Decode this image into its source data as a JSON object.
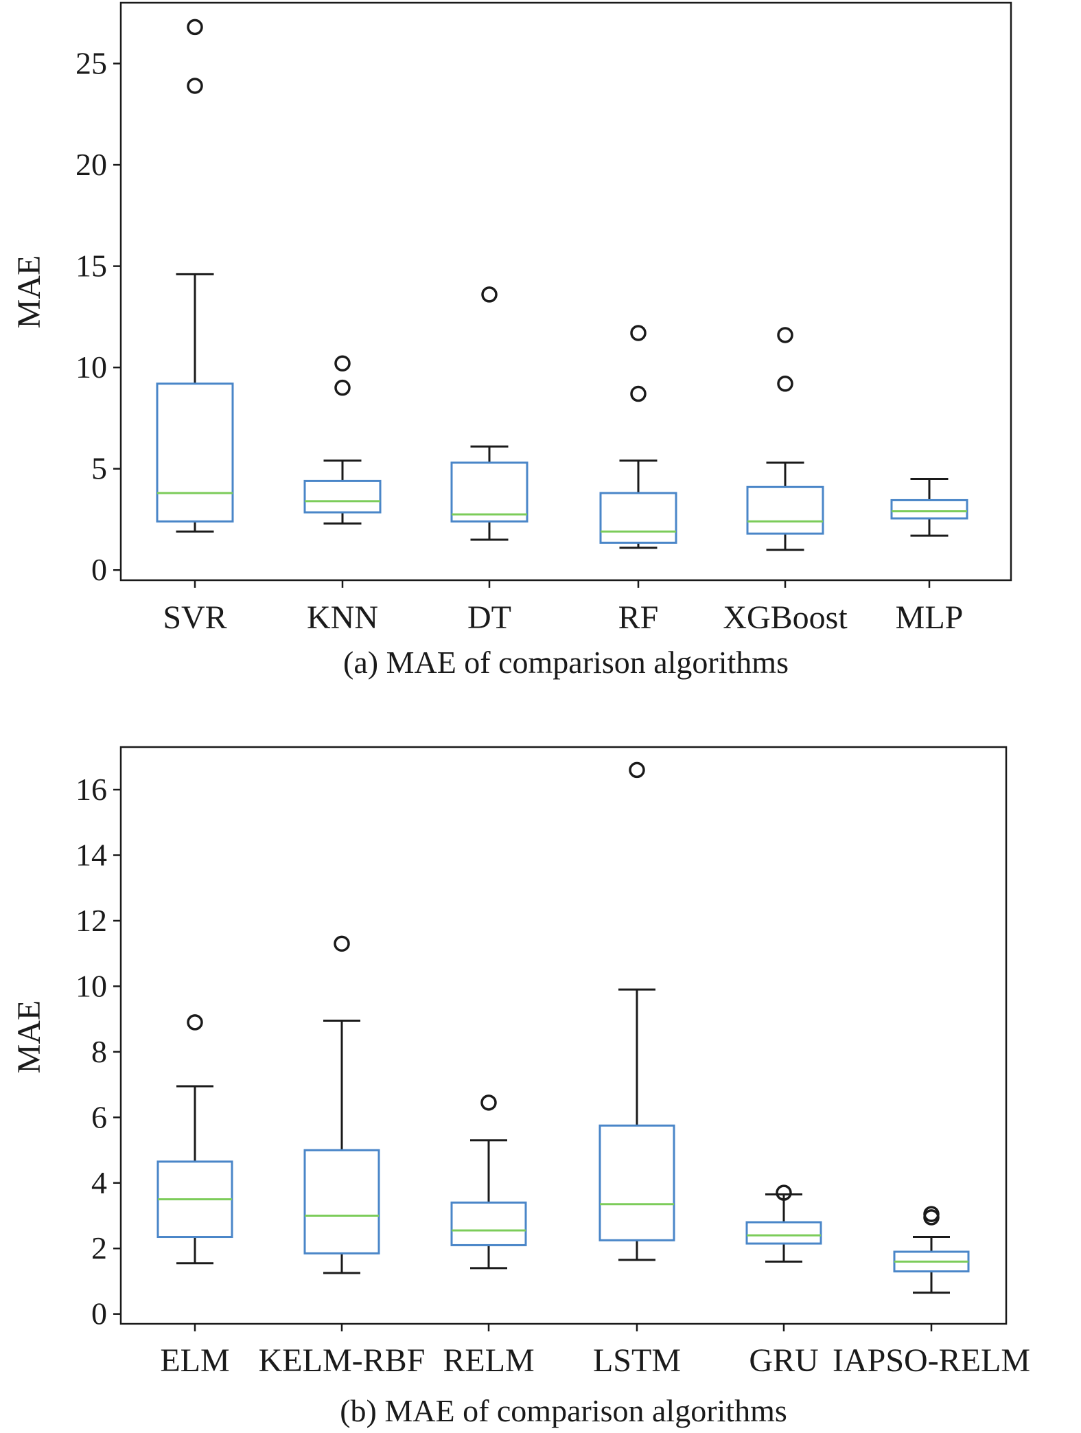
{
  "chart_data": [
    {
      "type": "boxplot",
      "caption": "(a) MAE of comparison algorithms",
      "ylabel": "MAE",
      "xlabel": "",
      "ylim": [
        -0.5,
        28
      ],
      "yticks": [
        0,
        5,
        10,
        15,
        20,
        25
      ],
      "grid": false,
      "categories": [
        "SVR",
        "KNN",
        "DT",
        "RF",
        "XGBoost",
        "MLP"
      ],
      "boxes": [
        {
          "whisker_low": 1.9,
          "q1": 2.4,
          "median": 3.8,
          "q3": 9.2,
          "whisker_high": 14.6,
          "outliers": [
            23.9,
            26.8
          ]
        },
        {
          "whisker_low": 2.3,
          "q1": 2.85,
          "median": 3.4,
          "q3": 4.4,
          "whisker_high": 5.4,
          "outliers": [
            9.0,
            10.2
          ]
        },
        {
          "whisker_low": 1.5,
          "q1": 2.4,
          "median": 2.75,
          "q3": 5.3,
          "whisker_high": 6.1,
          "outliers": [
            13.6
          ]
        },
        {
          "whisker_low": 1.1,
          "q1": 1.35,
          "median": 1.9,
          "q3": 3.8,
          "whisker_high": 5.4,
          "outliers": [
            8.7,
            11.7
          ]
        },
        {
          "whisker_low": 1.0,
          "q1": 1.8,
          "median": 2.4,
          "q3": 4.1,
          "whisker_high": 5.3,
          "outliers": [
            9.2,
            11.6
          ]
        },
        {
          "whisker_low": 1.7,
          "q1": 2.55,
          "median": 2.9,
          "q3": 3.45,
          "whisker_high": 4.5,
          "outliers": []
        }
      ]
    },
    {
      "type": "boxplot",
      "caption": "(b) MAE of comparison algorithms",
      "ylabel": "MAE",
      "xlabel": "",
      "ylim": [
        -0.3,
        17.3
      ],
      "yticks": [
        0,
        2,
        4,
        6,
        8,
        10,
        12,
        14,
        16
      ],
      "grid": false,
      "categories": [
        "ELM",
        "KELM-RBF",
        "RELM",
        "LSTM",
        "GRU",
        "IAPSO-RELM"
      ],
      "boxes": [
        {
          "whisker_low": 1.55,
          "q1": 2.35,
          "median": 3.5,
          "q3": 4.65,
          "whisker_high": 6.95,
          "outliers": [
            8.9
          ]
        },
        {
          "whisker_low": 1.25,
          "q1": 1.85,
          "median": 3.0,
          "q3": 5.0,
          "whisker_high": 8.95,
          "outliers": [
            11.3
          ]
        },
        {
          "whisker_low": 1.4,
          "q1": 2.1,
          "median": 2.55,
          "q3": 3.4,
          "whisker_high": 5.3,
          "outliers": [
            6.45
          ]
        },
        {
          "whisker_low": 1.65,
          "q1": 2.25,
          "median": 3.35,
          "q3": 5.75,
          "whisker_high": 9.9,
          "outliers": [
            16.6
          ]
        },
        {
          "whisker_low": 1.6,
          "q1": 2.15,
          "median": 2.4,
          "q3": 2.8,
          "whisker_high": 3.65,
          "outliers": [
            3.7
          ]
        },
        {
          "whisker_low": 0.65,
          "q1": 1.3,
          "median": 1.6,
          "q3": 1.9,
          "whisker_high": 2.35,
          "outliers": [
            2.95,
            3.05
          ]
        }
      ]
    }
  ],
  "colors": {
    "box": "#4a86c8",
    "median": "#7ccc5a",
    "whisker": "#1a1a1a",
    "axis": "#1a1a1a"
  }
}
